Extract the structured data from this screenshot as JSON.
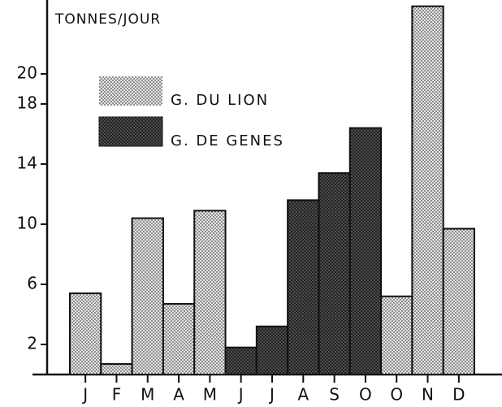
{
  "chart_data": {
    "type": "bar",
    "y_axis_label": "TONNES/JOUR",
    "categories": [
      "J",
      "F",
      "M",
      "A",
      "M",
      "J",
      "J",
      "A",
      "S",
      "O",
      "O",
      "N",
      "D"
    ],
    "series": [
      {
        "name": "G. DU LION",
        "color": "#d4d4d4",
        "values": [
          5.4,
          0.7,
          10.4,
          4.7,
          10.9,
          null,
          null,
          null,
          null,
          null,
          5.2,
          24.5,
          9.7
        ]
      },
      {
        "name": "G. DE GENES",
        "color": "#3a3a3a",
        "values": [
          null,
          null,
          null,
          null,
          null,
          1.8,
          3.2,
          11.6,
          13.4,
          16.4,
          null,
          null,
          null
        ]
      }
    ],
    "ylim": [
      0,
      24.7
    ],
    "yticks": [
      2,
      6,
      10,
      14,
      18,
      20
    ],
    "legend": "upper left"
  }
}
